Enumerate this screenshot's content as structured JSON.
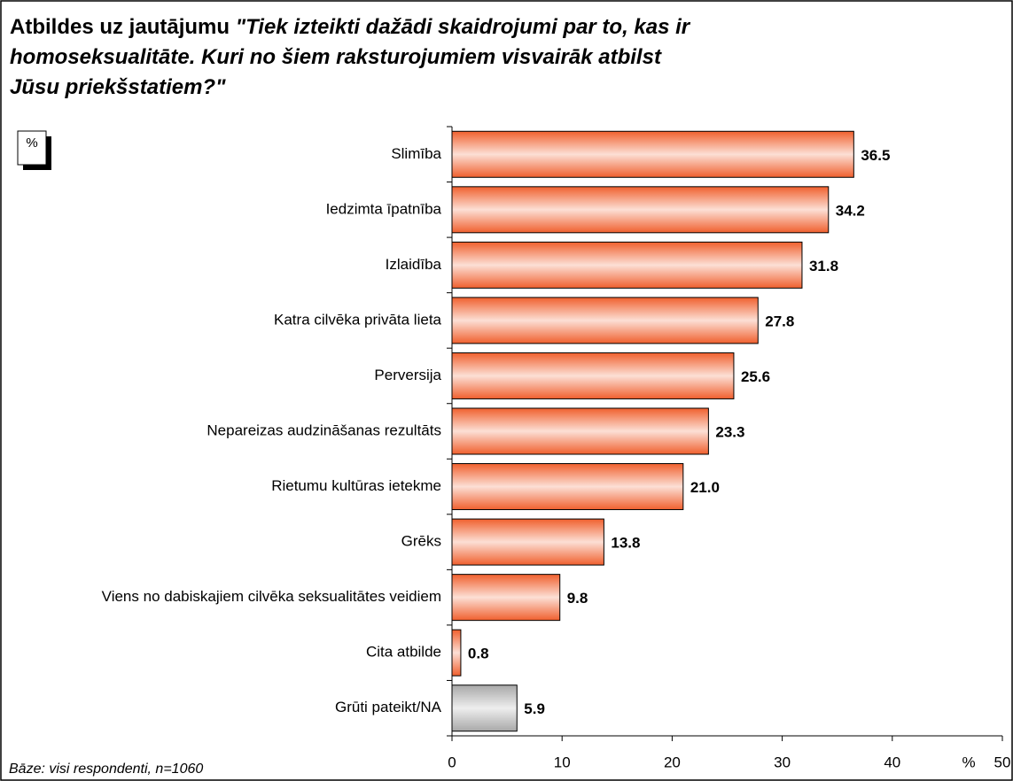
{
  "chart_data": {
    "type": "bar",
    "title": "Atbildes uz jautājumu",
    "title_question": "\"Tiek izteikti dažādi skaidrojumi par to, kas ir homoseksualitāte. Kuri no šiem raksturojumiem visvairāk atbilst Jūsu priekšstatiem?\"",
    "unit_label": "%",
    "x_axis_label": "%",
    "note": "Bāze: visi respondenti, n=1060",
    "categories": [
      "Slimība",
      "Iedzimta īpatnība",
      "Izlaidība",
      "Katra cilvēka privāta lieta",
      "Perversija",
      "Nepareizas audzināšanas rezultāts",
      "Rietumu kultūras ietekme",
      "Grēks",
      "Viens no dabiskajiem cilvēka seksualitātes veidiem",
      "Cita atbilde",
      "Grūti pateikt/NA"
    ],
    "values": [
      36.5,
      34.2,
      31.8,
      27.8,
      25.6,
      23.3,
      21.0,
      13.8,
      9.8,
      0.8,
      5.9
    ],
    "value_labels": [
      "36.5",
      "34.2",
      "31.8",
      "27.8",
      "25.6",
      "23.3",
      "21.0",
      "13.8",
      "9.8",
      "0.8",
      "5.9"
    ],
    "colors": [
      "#f0602e",
      "#f0602e",
      "#f0602e",
      "#f0602e",
      "#f0602e",
      "#f0602e",
      "#f0602e",
      "#f0602e",
      "#f0602e",
      "#f0602e",
      "#a8a8a8"
    ],
    "orientation": "horizontal",
    "xlim": [
      0,
      50
    ],
    "xticks": [
      0,
      10,
      20,
      30,
      40,
      50
    ]
  }
}
